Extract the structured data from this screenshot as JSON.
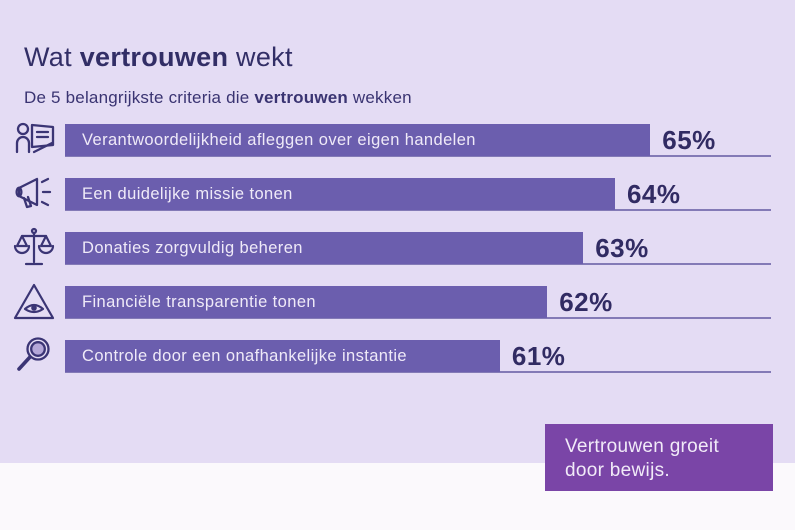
{
  "header": {
    "title_prefix": "Wat ",
    "title_bold": "vertrouwen",
    "title_suffix": " wekt",
    "subtitle_prefix": "De 5 belangrijkste criteria die ",
    "subtitle_bold": "vertrouwen",
    "subtitle_suffix": " wekken"
  },
  "chart_data": {
    "type": "bar",
    "orientation": "horizontal",
    "title": "Wat vertrouwen wekt",
    "subtitle": "De 5 belangrijkste criteria die vertrouwen wekken",
    "categories": [
      "Verantwoordelijkheid afleggen over eigen handelen",
      "Een duidelijke missie tonen",
      "Donaties zorgvuldig beheren",
      "Financiële transparentie tonen",
      "Controle door een onafhankelijke instantie"
    ],
    "values": [
      65,
      64,
      63,
      62,
      61
    ],
    "unit": "%",
    "value_labels": [
      "65%",
      "64%",
      "63%",
      "62%",
      "61%"
    ],
    "icon_names": [
      "person-presenting-icon",
      "megaphone-icon",
      "scales-icon",
      "eye-triangle-icon",
      "magnifier-icon"
    ],
    "layout_hints": {
      "bars_not_zero_based": true,
      "baseline_rule_after_each_bar": true,
      "value_label_position": "right-of-bar"
    }
  },
  "bars": [
    {
      "label": "Verantwoordelijkheid afleggen over eigen handelen",
      "value": "65%",
      "width_pct": 82.9
    },
    {
      "label": "Een duidelijke missie tonen",
      "value": "64%",
      "width_pct": 77.9
    },
    {
      "label": "Donaties zorgvuldig beheren",
      "value": "63%",
      "width_pct": 73.4
    },
    {
      "label": "Financiële transparentie tonen",
      "value": "62%",
      "width_pct": 68.3
    },
    {
      "label": "Controle door een onafhankelijke instantie",
      "value": "61%",
      "width_pct": 61.6
    }
  ],
  "callout": {
    "line1": "Vertrouwen groeit",
    "line2": "door bewijs."
  },
  "colors": {
    "background": "#E4DCF4",
    "bottom_strip": "#FBF9FC",
    "bar_fill": "#6B5EAE",
    "bar_text": "#EFEAF8",
    "heading_text": "#322E66",
    "percent_text": "#312B63",
    "baseline_rule": "#42398C",
    "icon_stroke": "#3B3575",
    "callout_background": "#7A45A7",
    "callout_text": "#F1EBF8"
  }
}
